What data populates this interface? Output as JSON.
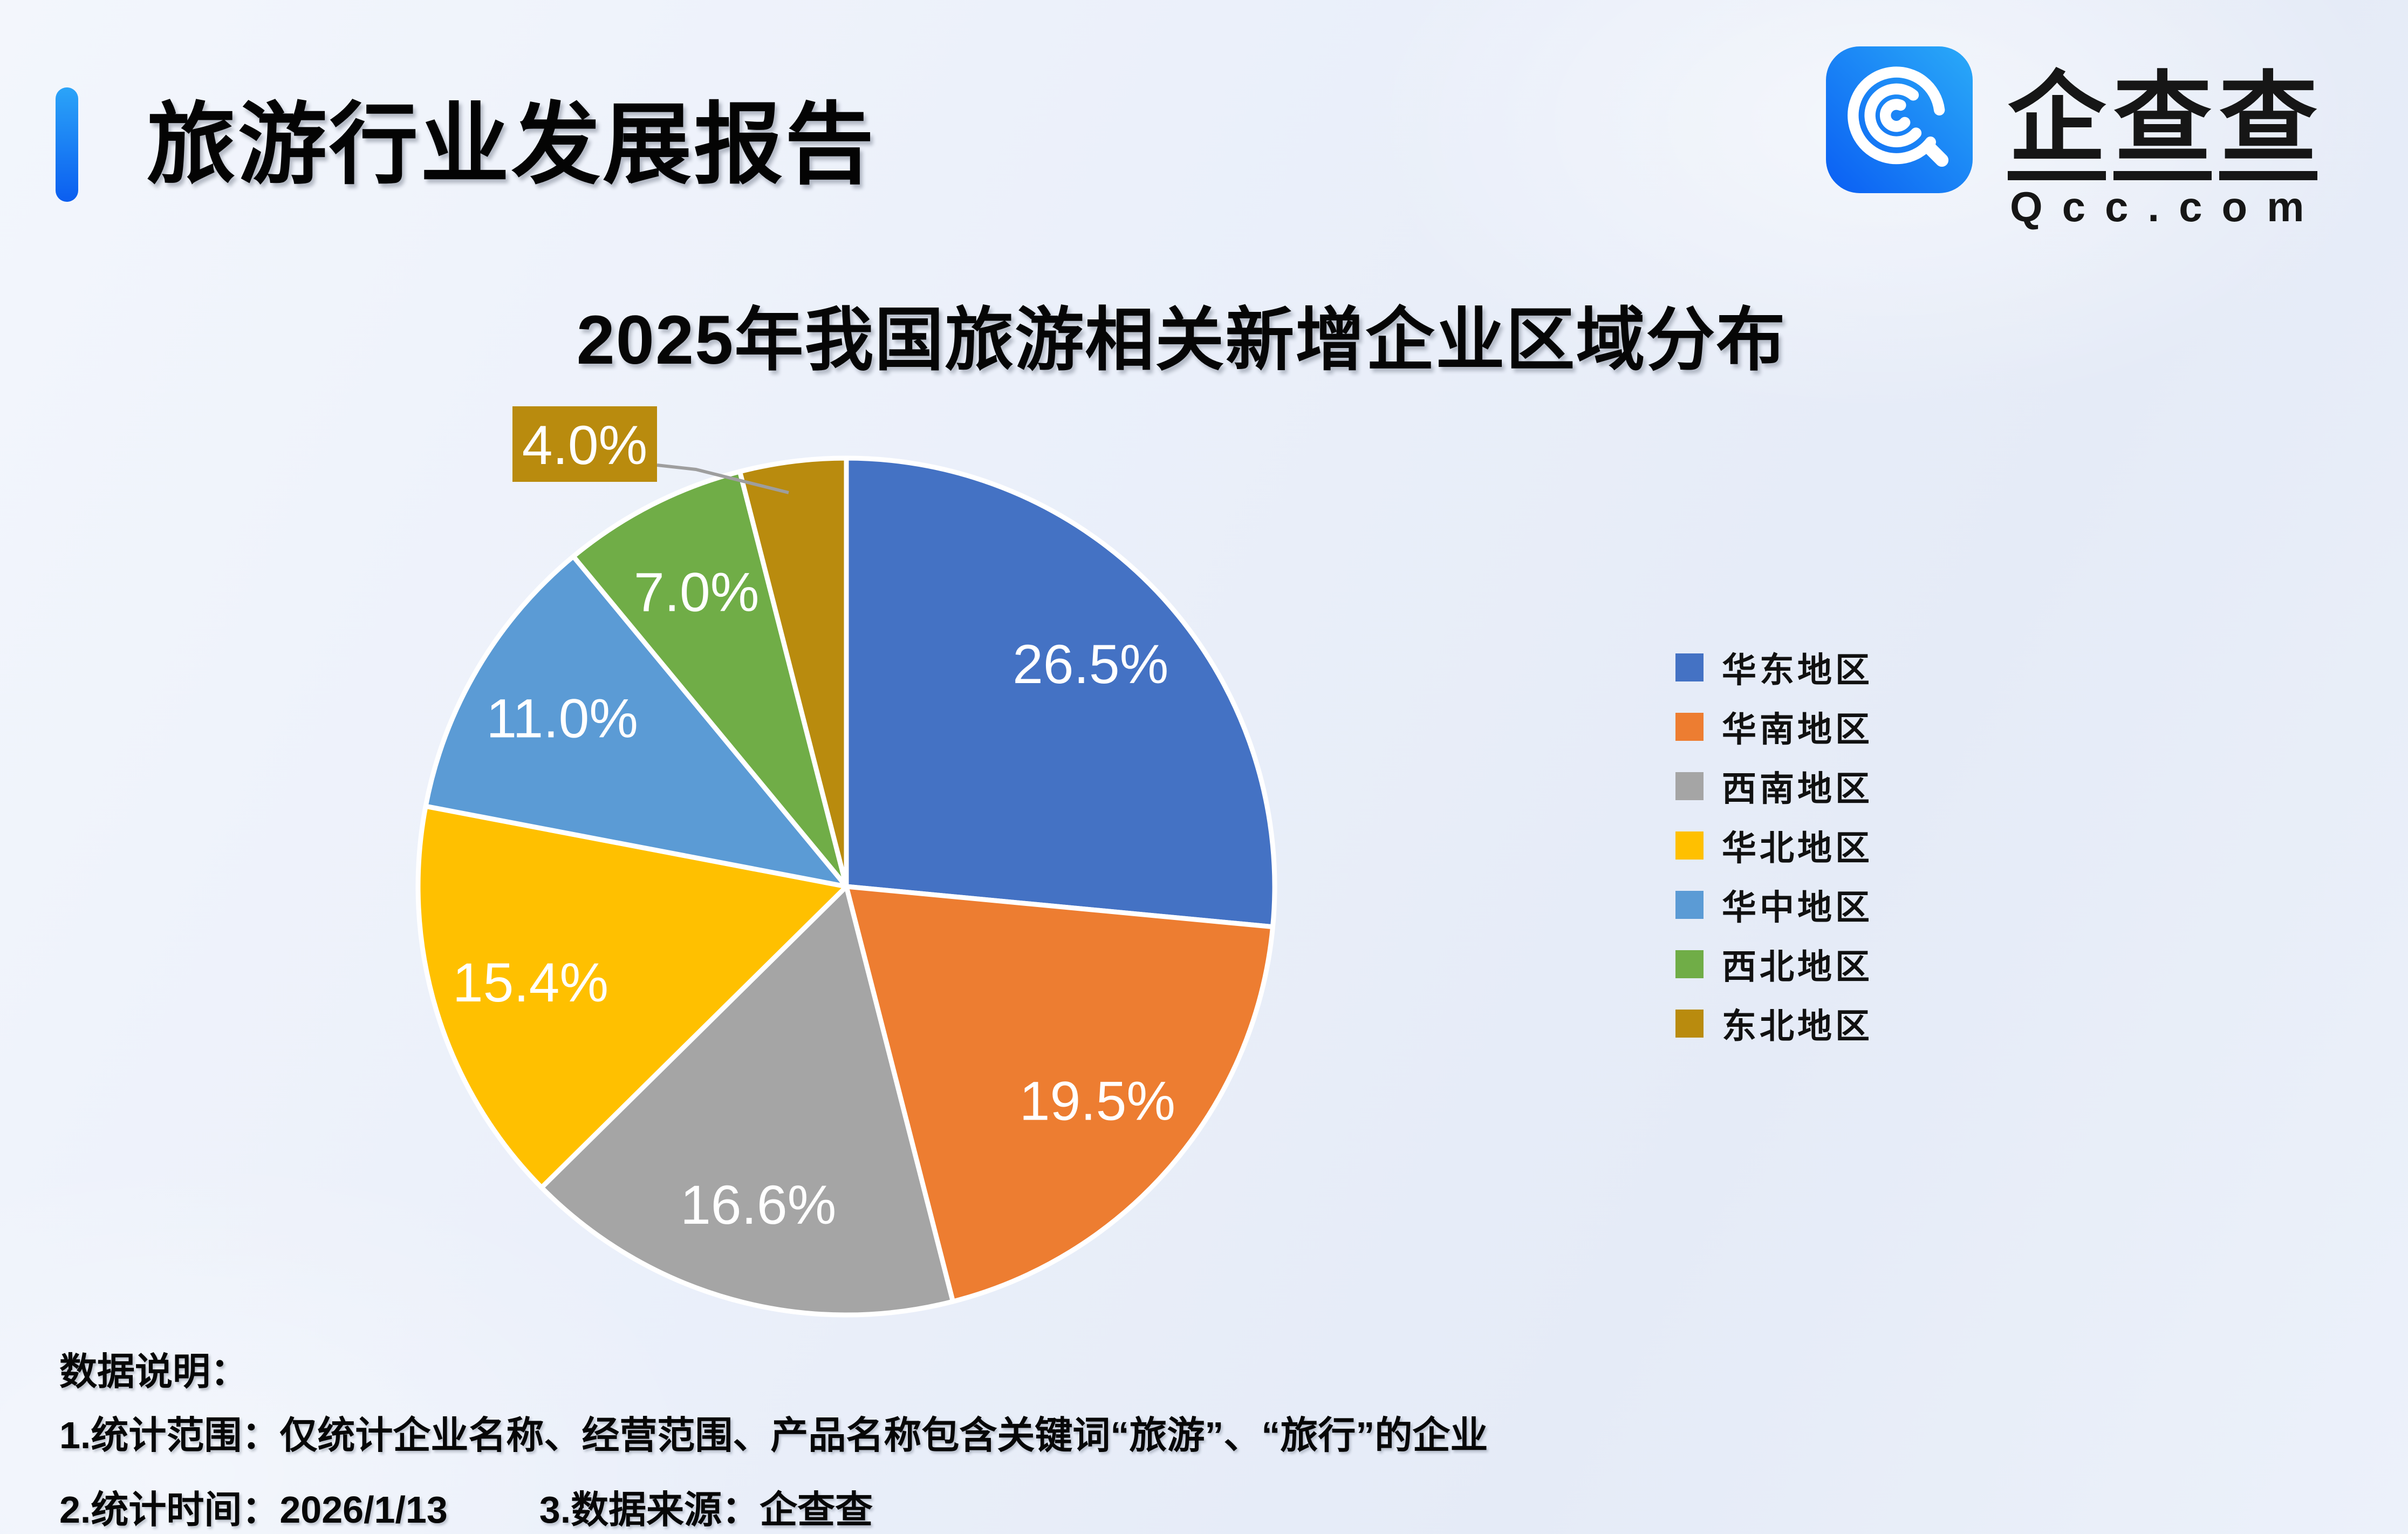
{
  "header": {
    "title": "旅游行业发展报告",
    "accent_color": "#1677f6"
  },
  "logo": {
    "name": "企查查",
    "domain": "Qcc.com",
    "icon_gradient_start": "#0a62f4",
    "icon_gradient_end": "#2aaaf8"
  },
  "chart_data": {
    "type": "pie",
    "title": "2025年我国旅游相关新增企业区域分布",
    "unit": "percent",
    "direction": "clockwise",
    "start_angle_deg": 0,
    "legend_position": "right",
    "slice_border_color": "#ffffff",
    "label_color": "#ffffff",
    "series": [
      {
        "label": "华东地区",
        "value": 26.5,
        "color": "#4472c4"
      },
      {
        "label": "华南地区",
        "value": 19.5,
        "color": "#ed7d31"
      },
      {
        "label": "西南地区",
        "value": 16.6,
        "color": "#a5a5a5"
      },
      {
        "label": "华北地区",
        "value": 15.4,
        "color": "#ffc000"
      },
      {
        "label": "华中地区",
        "value": 11.0,
        "color": "#5b9bd5"
      },
      {
        "label": "西北地区",
        "value": 7.0,
        "color": "#70ad47"
      },
      {
        "label": "东北地区",
        "value": 4.0,
        "color": "#b98b0e"
      }
    ],
    "callout": {
      "for_label": "东北地区",
      "text": "4.0%",
      "box_color": "#b98b0e",
      "leader_line_color": "#9e9e9e"
    }
  },
  "notes": {
    "heading": "数据说明：",
    "line1": "1.统计范围：仅统计企业名称、经营范围、产品名称包含关键词“旅游”、“旅行”的企业",
    "line2": "2.统计时间：2026/1/13",
    "line3": "3.数据来源：企查查"
  }
}
